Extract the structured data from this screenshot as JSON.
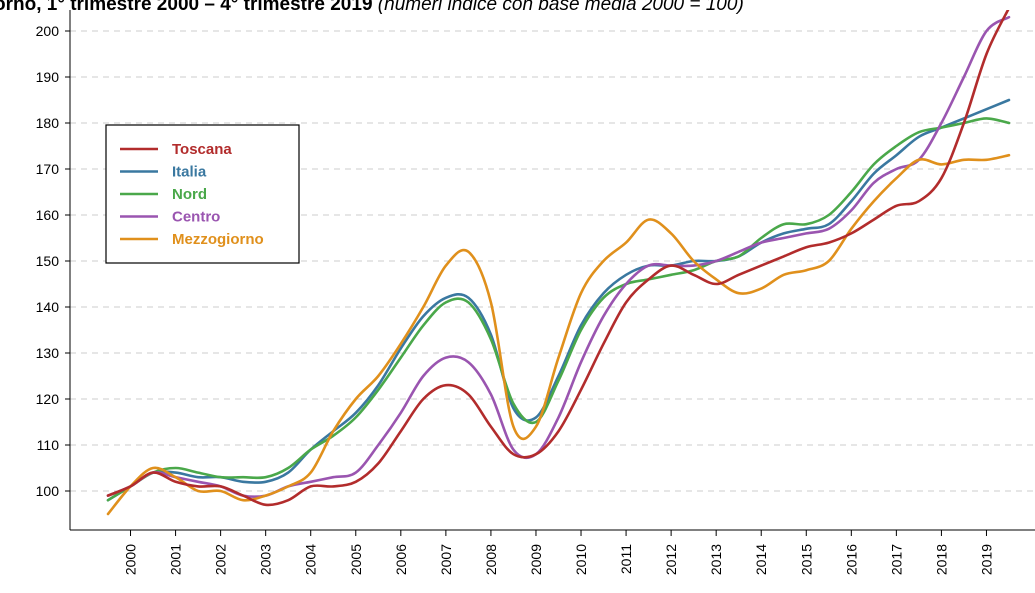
{
  "title": {
    "bold": "orno, 1° trimestre 2000 – 4° trimestre 2019",
    "italic": " (numeri indice con base media 2000 = 100)"
  },
  "chart_data": {
    "type": "line",
    "title": "orno, 1° trimestre 2000 – 4° trimestre 2019 (numeri indice con base media 2000 = 100)",
    "xlabel": "",
    "ylabel": "",
    "x_ticks": [
      "2000",
      "2001",
      "2002",
      "2003",
      "2004",
      "2005",
      "2006",
      "2007",
      "2008",
      "2009",
      "2010",
      "2011",
      "2012",
      "2013",
      "2014",
      "2015",
      "2016",
      "2017",
      "2018",
      "2019"
    ],
    "y_ticks": [
      100,
      110,
      120,
      130,
      140,
      150,
      160,
      170,
      180,
      190,
      200
    ],
    "xlim": [
      2000.0,
      2020.2
    ],
    "ylim": [
      91,
      204
    ],
    "grid": "horizontal dashed",
    "legend_position": "top-left",
    "colors": {
      "Toscana": "#b22c2c",
      "Italia": "#3a78a0",
      "Nord": "#4aa84a",
      "Centro": "#9a55b0",
      "Mezzogiorno": "#e0901c"
    },
    "x": [
      2000.0,
      2000.5,
      2001.0,
      2001.5,
      2002.0,
      2002.5,
      2003.0,
      2003.5,
      2004.0,
      2004.5,
      2005.0,
      2005.5,
      2006.0,
      2006.5,
      2007.0,
      2007.5,
      2008.0,
      2008.5,
      2009.0,
      2009.5,
      2010.0,
      2010.5,
      2011.0,
      2011.5,
      2012.0,
      2012.5,
      2013.0,
      2013.5,
      2014.0,
      2014.5,
      2015.0,
      2015.5,
      2016.0,
      2016.5,
      2017.0,
      2017.5,
      2018.0,
      2018.5,
      2019.0,
      2019.5,
      2020.0
    ],
    "series": [
      {
        "name": "Toscana",
        "values": [
          99,
          101,
          104,
          102,
          101,
          101,
          99,
          97,
          98,
          101,
          101,
          102,
          106,
          113,
          120,
          123,
          121,
          114,
          108,
          108,
          113,
          122,
          132,
          141,
          146,
          149,
          147,
          145,
          147,
          149,
          151,
          153,
          154,
          156,
          159,
          162,
          163,
          168,
          180,
          195,
          205
        ]
      },
      {
        "name": "Italia",
        "values": [
          98,
          101,
          104,
          104,
          103,
          103,
          102,
          102,
          104,
          109,
          113,
          117,
          123,
          131,
          138,
          142,
          142,
          134,
          118,
          116,
          125,
          136,
          143,
          147,
          149,
          149,
          150,
          150,
          151,
          154,
          156,
          157,
          158,
          163,
          169,
          173,
          177,
          179,
          181,
          183,
          185
        ]
      },
      {
        "name": "Nord",
        "values": [
          98,
          101,
          104,
          105,
          104,
          103,
          103,
          103,
          105,
          109,
          112,
          116,
          122,
          129,
          136,
          141,
          141,
          133,
          119,
          115,
          124,
          135,
          142,
          145,
          146,
          147,
          148,
          150,
          151,
          155,
          158,
          158,
          160,
          165,
          171,
          175,
          178,
          179,
          180,
          181,
          180
        ]
      },
      {
        "name": "Centro",
        "values": [
          99,
          101,
          104,
          103,
          102,
          101,
          99,
          99,
          101,
          102,
          103,
          104,
          110,
          117,
          125,
          129,
          128,
          121,
          109,
          108,
          116,
          128,
          138,
          145,
          149,
          149,
          149,
          150,
          152,
          154,
          155,
          156,
          157,
          161,
          167,
          170,
          172,
          180,
          190,
          200,
          203
        ]
      },
      {
        "name": "Mezzogiorno",
        "values": [
          95,
          101,
          105,
          103,
          100,
          100,
          98,
          99,
          101,
          104,
          113,
          120,
          125,
          132,
          140,
          149,
          152,
          141,
          114,
          114,
          129,
          143,
          150,
          154,
          159,
          156,
          150,
          146,
          143,
          144,
          147,
          148,
          150,
          157,
          163,
          168,
          172,
          171,
          172,
          172,
          173
        ]
      }
    ]
  }
}
